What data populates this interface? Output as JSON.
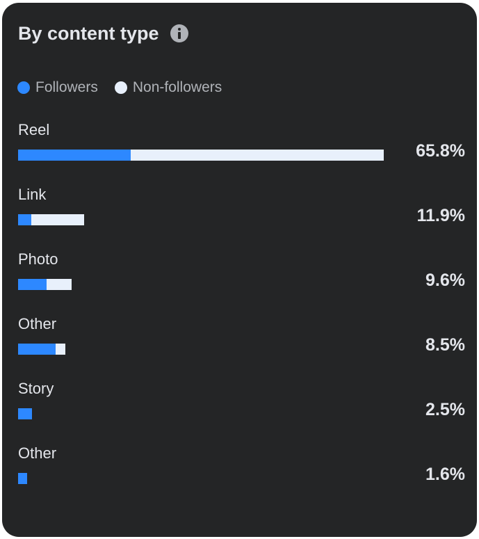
{
  "card": {
    "title": "By content type"
  },
  "legend": {
    "followers": "Followers",
    "non_followers": "Non-followers"
  },
  "colors": {
    "followers": "#2d88ff",
    "non_followers": "#e8f0fb",
    "background": "#242526"
  },
  "chart_data": {
    "type": "bar",
    "orientation": "horizontal",
    "stacked": true,
    "title": "By content type",
    "categories": [
      "Reel",
      "Link",
      "Photo",
      "Other",
      "Story",
      "Other"
    ],
    "totals_label": [
      "65.8%",
      "11.9%",
      "9.6%",
      "8.5%",
      "2.5%",
      "1.6%"
    ],
    "totals": [
      65.8,
      11.9,
      9.6,
      8.5,
      2.5,
      1.6
    ],
    "series": [
      {
        "name": "Followers",
        "values": [
          20.3,
          2.4,
          5.1,
          6.7,
          2.5,
          1.6
        ]
      },
      {
        "name": "Non-followers",
        "values": [
          45.5,
          9.5,
          4.5,
          1.8,
          0,
          0
        ]
      }
    ],
    "xlim": [
      0,
      65.8
    ],
    "legend_position": "top-left"
  }
}
